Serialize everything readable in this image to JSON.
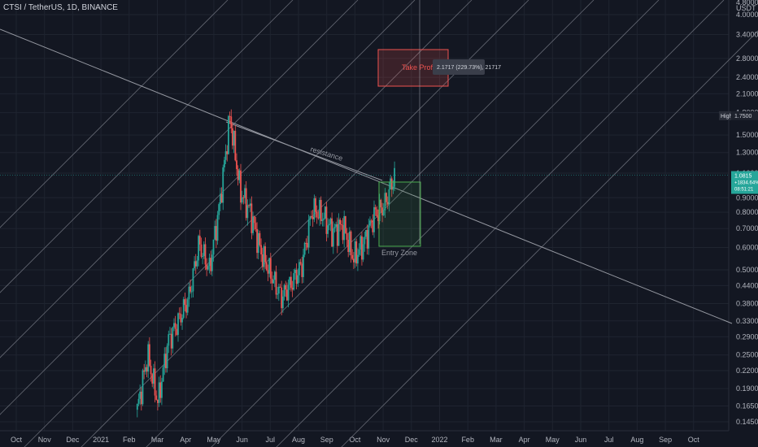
{
  "header": {
    "symbol_title": "CTSI / TetherUS, 1D, BINANCE"
  },
  "colors": {
    "bg": "#131722",
    "up": "#26a69a",
    "down": "#ef5350",
    "grid": "#1f2430",
    "line": "#9598a1",
    "box_red": "#ef5350",
    "box_green": "#4caf50",
    "teal": "#26a69a"
  },
  "chart_data": {
    "type": "candlestick",
    "title": "CTSI / TetherUS, 1D, BINANCE",
    "scale": "log",
    "ylim": [
      0.14,
      4.2
    ],
    "y_ticks": [
      "4.0000",
      "3.4000",
      "2.8000",
      "2.4000",
      "2.1000",
      "1.8000",
      "1.5000",
      "1.3000",
      "1.1000",
      "0.9000",
      "0.8000",
      "0.7000",
      "0.6000",
      "0.5000",
      "0.4400",
      "0.3800",
      "0.3300",
      "0.2900",
      "0.2500",
      "0.2200",
      "0.1900",
      "0.1650",
      "0.1450"
    ],
    "y_ticks_values": [
      4.0,
      3.4,
      2.8,
      2.4,
      2.1,
      1.8,
      1.5,
      1.3,
      1.1,
      0.9,
      0.8,
      0.7,
      0.6,
      0.5,
      0.44,
      0.38,
      0.33,
      0.29,
      0.25,
      0.22,
      0.19,
      0.165,
      0.145
    ],
    "y_axis_top_label": "4.8000",
    "currency_label": "USDT",
    "x_ticks": [
      "Oct",
      "Nov",
      "Dec",
      "2021",
      "Feb",
      "Mar",
      "Apr",
      "May",
      "Jun",
      "Jul",
      "Aug",
      "Sep",
      "Oct",
      "Nov",
      "Dec",
      "2022",
      "Feb",
      "Mar",
      "Apr",
      "May",
      "Jun",
      "Jul",
      "Aug",
      "Sep",
      "Oct"
    ],
    "price_path": [
      {
        "month": "Feb",
        "price": 0.16
      },
      {
        "month": "Feb",
        "price": 0.25
      },
      {
        "month": "Feb",
        "price": 0.17
      },
      {
        "month": "Mar",
        "price": 0.28
      },
      {
        "month": "Mar",
        "price": 0.33
      },
      {
        "month": "Apr",
        "price": 0.4
      },
      {
        "month": "Apr",
        "price": 0.62
      },
      {
        "month": "Apr",
        "price": 0.5
      },
      {
        "month": "May",
        "price": 0.85
      },
      {
        "month": "May",
        "price": 1.75
      },
      {
        "month": "May",
        "price": 0.95
      },
      {
        "month": "Jun",
        "price": 0.8
      },
      {
        "month": "Jun",
        "price": 0.58
      },
      {
        "month": "Jul",
        "price": 0.48
      },
      {
        "month": "Jul",
        "price": 0.4
      },
      {
        "month": "Jul",
        "price": 0.45
      },
      {
        "month": "Aug",
        "price": 0.52
      },
      {
        "month": "Aug",
        "price": 0.82
      },
      {
        "month": "Aug",
        "price": 0.78
      },
      {
        "month": "Sep",
        "price": 0.68
      },
      {
        "month": "Sep",
        "price": 0.72
      },
      {
        "month": "Sep",
        "price": 0.55
      },
      {
        "month": "Oct",
        "price": 0.62
      },
      {
        "month": "Oct",
        "price": 0.78
      },
      {
        "month": "Nov",
        "price": 0.84
      },
      {
        "month": "Nov",
        "price": 1.08
      }
    ],
    "price_badge": {
      "price": "1.0815",
      "change": "+1834.64%",
      "timer": "08:51:21"
    },
    "high_label": {
      "label": "High",
      "value": "1.7500"
    },
    "annotations": {
      "take_profit": "Take Profit",
      "entry_zone": "Entry Zone",
      "resistance": "resistance",
      "tooltip": "2.1717 (229.73%), 21717"
    }
  }
}
